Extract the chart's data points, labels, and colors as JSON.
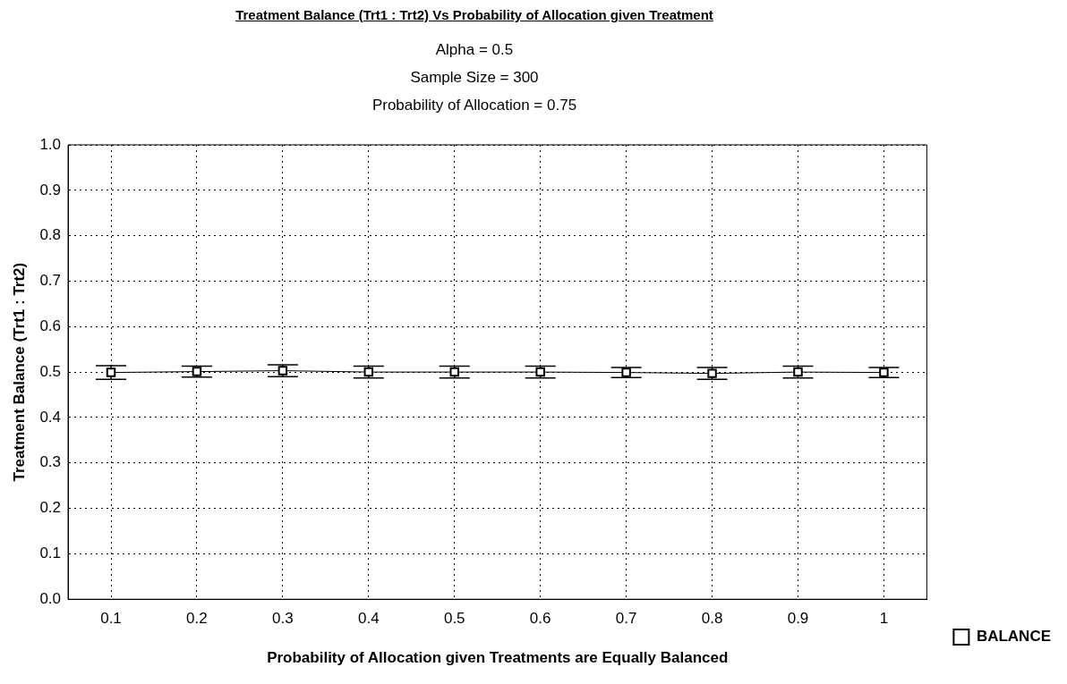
{
  "chart_data": {
    "type": "line",
    "title": "Treatment Balance (Trt1 : Trt2) Vs Probability of Allocation given Treatment",
    "subtitle": "Alpha = 0.5\nSample Size = 300\nProbability of Allocation = 0.75",
    "xlabel": "Probability of Allocation given Treatments are Equally Balanced",
    "ylabel": "Treatment Balance (Trt1 : Trt2)",
    "categories": [
      "0.1",
      "0.2",
      "0.3",
      "0.4",
      "0.5",
      "0.6",
      "0.7",
      "0.8",
      "0.9",
      "1"
    ],
    "series": [
      {
        "name": "BALANCE",
        "color": "#000000",
        "values": [
          0.499,
          0.501,
          0.503,
          0.5,
          0.5,
          0.5,
          0.499,
          0.497,
          0.5,
          0.499
        ],
        "errors": [
          0.015,
          0.012,
          0.013,
          0.013,
          0.013,
          0.013,
          0.011,
          0.013,
          0.013,
          0.011
        ]
      }
    ],
    "ylim": [
      0,
      1
    ],
    "yticks": [
      {
        "value": 0,
        "label": "0.0"
      },
      {
        "value": 0.1,
        "label": "0.1"
      },
      {
        "value": 0.2,
        "label": "0.2"
      },
      {
        "value": 0.3,
        "label": "0.3"
      },
      {
        "value": 0.4,
        "label": "0.4"
      },
      {
        "value": 0.5,
        "label": "0.5"
      },
      {
        "value": 0.6,
        "label": "0.6"
      },
      {
        "value": 0.7,
        "label": "0.7"
      },
      {
        "value": 0.8,
        "label": "0.8"
      },
      {
        "value": 0.9,
        "label": "0.9"
      },
      {
        "value": 1,
        "label": "1.0"
      }
    ],
    "grid": true,
    "legend": "right",
    "marker": "square",
    "line_style": "solid"
  }
}
